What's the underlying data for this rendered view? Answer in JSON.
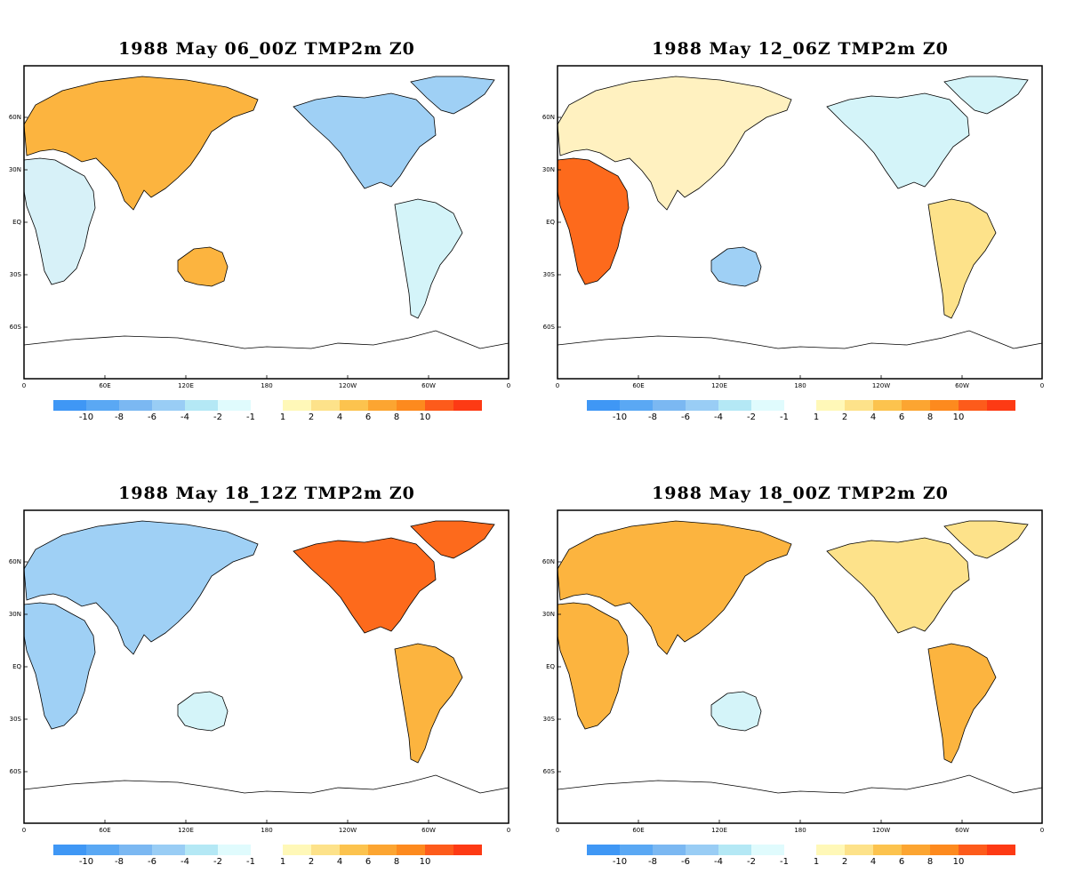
{
  "panels": [
    {
      "title": "1988 May 06_00Z TMP2m Z0",
      "anomalies": {
        "eurasia": "warm",
        "africa": "cool-warm",
        "north-america": "cool",
        "south-america": "slight-cool",
        "australia": "warm"
      }
    },
    {
      "title": "1988 May 12_06Z TMP2m Z0",
      "anomalies": {
        "eurasia": "mixed",
        "africa": "hot",
        "north-america": "slight-cool",
        "south-america": "slight-warm",
        "australia": "cool"
      }
    },
    {
      "title": "1988 May 18_12Z TMP2m Z0",
      "anomalies": {
        "eurasia": "cool",
        "africa": "cool",
        "north-america": "hot",
        "south-america": "warm",
        "australia": "slight-cool"
      }
    },
    {
      "title": "1988 May 18_00Z TMP2m Z0",
      "anomalies": {
        "eurasia": "warm",
        "africa": "warm",
        "north-america": "slight-warm",
        "south-america": "warm",
        "australia": "slight-cool"
      }
    }
  ],
  "lat_labels": [
    "60N",
    "30N",
    "EQ",
    "30S",
    "60S"
  ],
  "lon_labels": [
    "0",
    "60E",
    "120E",
    "180",
    "120W",
    "60W",
    "0"
  ],
  "colorbar": {
    "neg_labels": [
      "-10",
      "-8",
      "-6",
      "-4",
      "-2",
      "-1"
    ],
    "pos_labels": [
      "1",
      "2",
      "4",
      "6",
      "8",
      "10"
    ],
    "neg_colors": [
      "#3f97f5",
      "#5aa8f4",
      "#7bb8f2",
      "#99cdf5",
      "#b4e8f5",
      "#e0fbfd"
    ],
    "pos_colors": [
      "#fff8b8",
      "#fde28a",
      "#fcc34e",
      "#fca531",
      "#fd8a1e",
      "#fd5b1b",
      "#fd3a14"
    ]
  },
  "anomaly_colors": {
    "hot": "#fd6a1c",
    "warm": "#fcb43f",
    "slight-warm": "#fde28a",
    "mixed": "#fff1c0",
    "cool-warm": "#d7f1f8",
    "slight-cool": "#d4f4f9",
    "cool": "#9fd0f5"
  }
}
